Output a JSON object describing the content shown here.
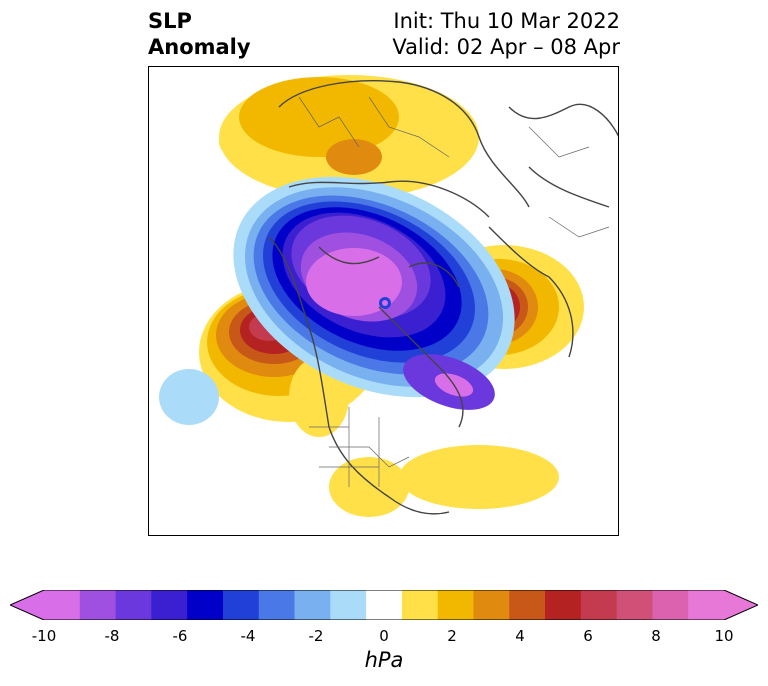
{
  "title": {
    "line1": "SLP",
    "line2": "Anomaly",
    "init": "Init: Thu 10 Mar 2022",
    "valid": "Valid: 02 Apr – 08 Apr"
  },
  "colorbar": {
    "unit": "hPa",
    "tick_labels": [
      "-10",
      "-8",
      "-6",
      "-4",
      "-2",
      "0",
      "2",
      "4",
      "6",
      "8",
      "10"
    ],
    "bins": [
      {
        "color": "#d86ee8"
      },
      {
        "color": "#a050e0"
      },
      {
        "color": "#6a38dc"
      },
      {
        "color": "#3a20d0"
      },
      {
        "color": "#0000c8"
      },
      {
        "color": "#2040d8"
      },
      {
        "color": "#4a78e6"
      },
      {
        "color": "#78b0f0"
      },
      {
        "color": "#aadcfa"
      },
      {
        "color": "#ffffff"
      },
      {
        "color": "#ffe048"
      },
      {
        "color": "#f2b800"
      },
      {
        "color": "#e08a10"
      },
      {
        "color": "#c85818"
      },
      {
        "color": "#b42222"
      },
      {
        "color": "#c43a4e"
      },
      {
        "color": "#d05078"
      },
      {
        "color": "#dc62b0"
      },
      {
        "color": "#e878d8"
      }
    ],
    "extend_low_color": "#d86ee8",
    "extend_high_color": "#e878d8"
  }
}
